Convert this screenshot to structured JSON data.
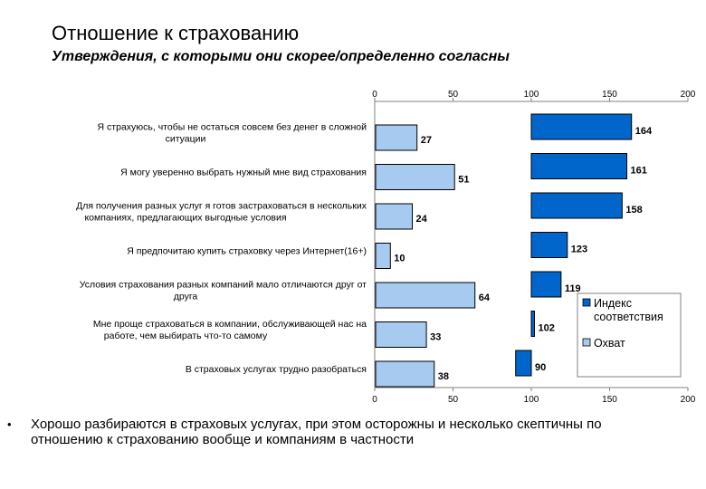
{
  "header": {
    "title": "Отношение к страхованию",
    "subtitle": "Утверждения, с которыми они скорее/определенно согласны"
  },
  "chart_data": {
    "type": "bar",
    "orientation": "horizontal",
    "layout": "split-panels",
    "categories": [
      "Я страхуюсь, чтобы не остаться совсем без денег в сложной ситуации",
      "Я могу уверенно выбрать нужный мне вид страхования",
      "Для получения разных услуг я готов застраховаться в нескольких компаниях, предлагающих выгодные условия",
      "Я предпочитаю купить страховку через Интернет(16+)",
      "Условия страхования разных компаний мало отличаются друг от друга",
      "Мне проще страховаться в компании, обслуживающей нас на работе, чем выбирать что-то самому",
      "В страховых услугах трудно разобраться"
    ],
    "category_lines": [
      [
        "Я страхуюсь, чтобы не остаться совсем без денег в сложной",
        "ситуации"
      ],
      [
        "Я могу уверенно выбрать нужный мне вид страхования"
      ],
      [
        "Для получения разных услуг я готов застраховаться в нескольких",
        "компаниях, предлагающих выгодные условия"
      ],
      [
        "Я предпочитаю купить страховку через Интернет(16+)"
      ],
      [
        "Условия страхования разных компаний мало отличаются друг от",
        "друга"
      ],
      [
        "Мне проще страховаться в компании, обслуживающей нас на",
        "работе, чем выбирать что-то самому"
      ],
      [
        "В страховых услугах трудно разобраться"
      ]
    ],
    "series": [
      {
        "name": "Охват",
        "color": "#a6caf0",
        "values": [
          27,
          51,
          24,
          10,
          64,
          33,
          38
        ]
      },
      {
        "name": "Индекс соответствия",
        "color": "#0066cc",
        "values": [
          164,
          161,
          158,
          123,
          119,
          102,
          90
        ]
      }
    ],
    "axis": {
      "min": 0,
      "max": 200,
      "ticks": [
        0,
        50,
        100,
        150,
        200
      ]
    },
    "legend": {
      "position": "right",
      "entries": [
        {
          "lines": [
            "Индекс",
            "соответствия"
          ],
          "color": "#0066cc"
        },
        {
          "lines": [
            "Охват"
          ],
          "color": "#a6caf0"
        }
      ]
    }
  },
  "footer": {
    "bullet": "•",
    "text": "Хорошо разбираются в страховых услугах, при этом осторожны и несколько скептичны по отношению к страхованию вообще и компаниям в частности"
  }
}
